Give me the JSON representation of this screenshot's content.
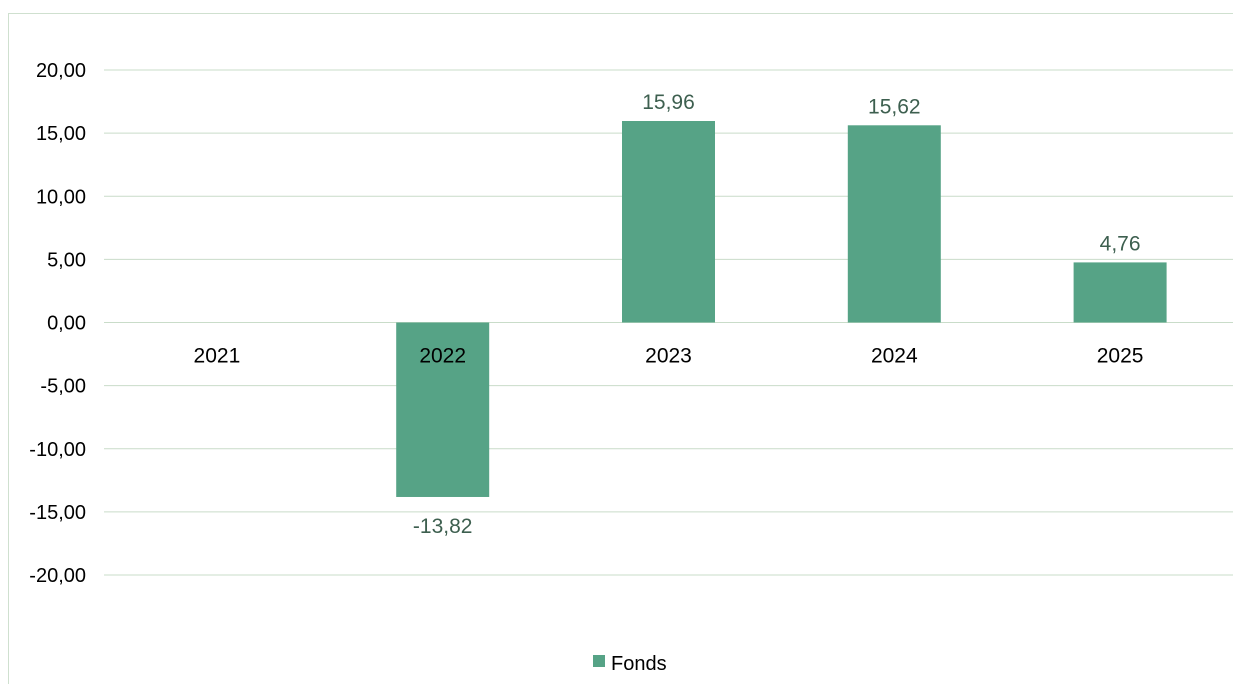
{
  "chart_data": {
    "type": "bar",
    "categories": [
      "2021",
      "2022",
      "2023",
      "2024",
      "2025"
    ],
    "series": [
      {
        "name": "Fonds",
        "values": [
          null,
          -13.82,
          15.96,
          15.62,
          4.76
        ],
        "labels": [
          "",
          "-13,82",
          "15,96",
          "15,62",
          "4,76"
        ]
      }
    ],
    "ylim": [
      -20,
      20
    ],
    "yticks": [
      "20,00",
      "15,00",
      "10,00",
      "5,00",
      "0,00",
      "-5,00",
      "-10,00",
      "-15,00",
      "-20,00"
    ],
    "ytick_values": [
      20,
      15,
      10,
      5,
      0,
      -5,
      -10,
      -15,
      -20
    ],
    "grid": true,
    "legend": "bottom-center",
    "colors": {
      "bar": "#56a386",
      "grid": "#c9dcc9",
      "data_label": "#3d5f4f"
    }
  }
}
